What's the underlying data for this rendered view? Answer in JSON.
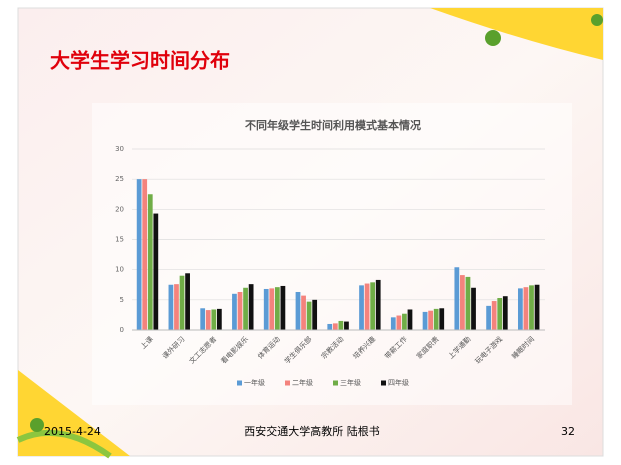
{
  "header": {
    "title": "大学生学习时间分布"
  },
  "chart_data": {
    "type": "bar",
    "title": "不同年级学生时间利用模式基本情况",
    "categories": [
      "上课",
      "课外研习",
      "文工志愿者",
      "看电影娱乐",
      "体育运动",
      "学生俱乐部",
      "宗教活动",
      "培养兴趣",
      "带薪工作",
      "家庭职责",
      "上学通勤",
      "玩电子游戏",
      "睡眠时间"
    ],
    "series": [
      {
        "name": "一年级",
        "color": "#5b9bd5",
        "values": [
          25,
          7.5,
          3.6,
          6,
          6.8,
          6.3,
          1,
          7.4,
          2.1,
          3,
          10.4,
          4,
          6.9
        ]
      },
      {
        "name": "二年级",
        "color": "#f4837d",
        "values": [
          25,
          7.6,
          3.3,
          6.3,
          6.9,
          5.7,
          1.1,
          7.7,
          2.4,
          3.2,
          9.1,
          4.8,
          7.1
        ]
      },
      {
        "name": "三年级",
        "color": "#70ad47",
        "values": [
          22.5,
          9,
          3.4,
          7,
          7.1,
          4.7,
          1.5,
          7.9,
          2.7,
          3.5,
          8.8,
          5.3,
          7.4
        ]
      },
      {
        "name": "四年级",
        "color": "#111111",
        "values": [
          19.3,
          9.4,
          3.5,
          7.6,
          7.3,
          5,
          1.4,
          8.3,
          3.4,
          3.6,
          7,
          5.6,
          7.5
        ]
      }
    ],
    "ylim": [
      0,
      30
    ],
    "yticks": [
      0,
      5,
      10,
      15,
      20,
      25,
      30
    ],
    "grid": true,
    "legend": "bottom"
  },
  "footer": {
    "date": "2015-4-24",
    "author": "西安交通大学高教所  陆根书",
    "page": "32"
  }
}
